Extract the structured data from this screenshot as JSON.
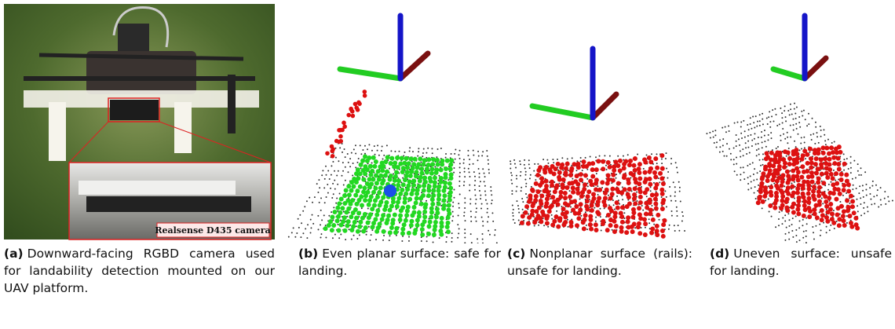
{
  "subfigures": [
    {
      "label": "(a)",
      "caption": "Downward-facing RGBD camera used for landability detection mounted on our UAV platform."
    },
    {
      "label": "(b)",
      "caption": "Even planar surface: safe for landing."
    },
    {
      "label": "(c)",
      "caption": "Nonplanar surface (rails): unsafe for landing."
    },
    {
      "label": "(d)",
      "caption": "Uneven surface: unsafe for landing."
    }
  ],
  "inset_label": "Realsense D435 camera"
}
